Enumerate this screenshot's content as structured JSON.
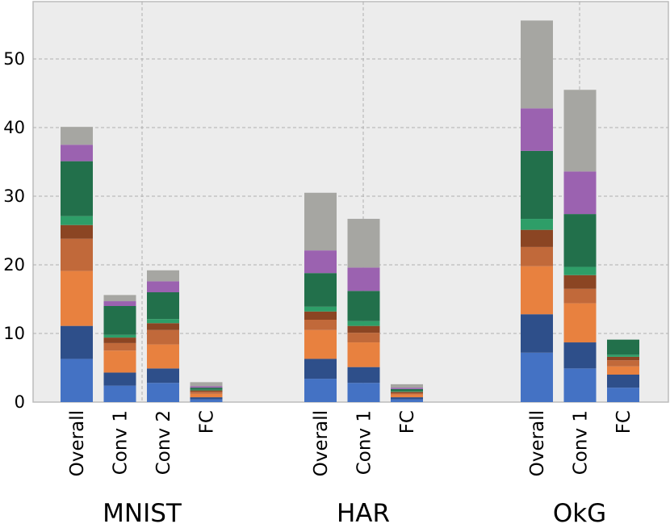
{
  "chart_data": {
    "type": "bar",
    "stacked": true,
    "title": "",
    "xlabel": "",
    "ylabel": "",
    "ylim": [
      0,
      57
    ],
    "yticks": [
      0,
      10,
      20,
      30,
      40,
      50
    ],
    "grid": true,
    "segment_colors": [
      "#4472c4",
      "#2e4f8a",
      "#e8813f",
      "#c1693a",
      "#8b4523",
      "#2e9e68",
      "#22704b",
      "#9b62b0",
      "#a6a6a2"
    ],
    "groups": [
      {
        "name": "MNIST",
        "bars": [
          {
            "label": "Overall",
            "segments": [
              6.3,
              4.8,
              8.0,
              4.7,
              2.0,
              1.3,
              8.0,
              2.4,
              2.6
            ]
          },
          {
            "label": "Conv 1",
            "segments": [
              2.4,
              1.9,
              3.2,
              1.1,
              0.8,
              0.4,
              4.2,
              0.7,
              0.9
            ]
          },
          {
            "label": "Conv 2",
            "segments": [
              2.8,
              2.1,
              3.5,
              2.1,
              1.0,
              0.6,
              3.9,
              1.6,
              1.6
            ]
          },
          {
            "label": "FC",
            "segments": [
              0.4,
              0.3,
              0.5,
              0.3,
              0.2,
              0.1,
              0.3,
              0.2,
              0.6
            ]
          }
        ]
      },
      {
        "name": "HAR",
        "bars": [
          {
            "label": "Overall",
            "segments": [
              3.4,
              2.9,
              4.2,
              1.5,
              1.2,
              0.7,
              4.9,
              3.3,
              8.4
            ]
          },
          {
            "label": "Conv 1",
            "segments": [
              2.8,
              2.3,
              3.6,
              1.4,
              1.0,
              0.7,
              4.4,
              3.4,
              7.1
            ]
          },
          {
            "label": "FC",
            "segments": [
              0.4,
              0.3,
              0.4,
              0.2,
              0.2,
              0.1,
              0.3,
              0.2,
              0.5
            ]
          }
        ]
      },
      {
        "name": "OkG",
        "bars": [
          {
            "label": "Overall",
            "segments": [
              7.2,
              5.6,
              7.0,
              2.8,
              2.5,
              1.6,
              9.9,
              6.2,
              12.8
            ]
          },
          {
            "label": "Conv 1",
            "segments": [
              4.9,
              3.8,
              5.7,
              2.1,
              2.0,
              1.2,
              7.7,
              6.2,
              11.9
            ]
          },
          {
            "label": "FC",
            "segments": [
              2.1,
              1.9,
              1.2,
              0.9,
              0.5,
              0.3,
              2.2,
              0,
              0
            ]
          }
        ]
      }
    ]
  }
}
